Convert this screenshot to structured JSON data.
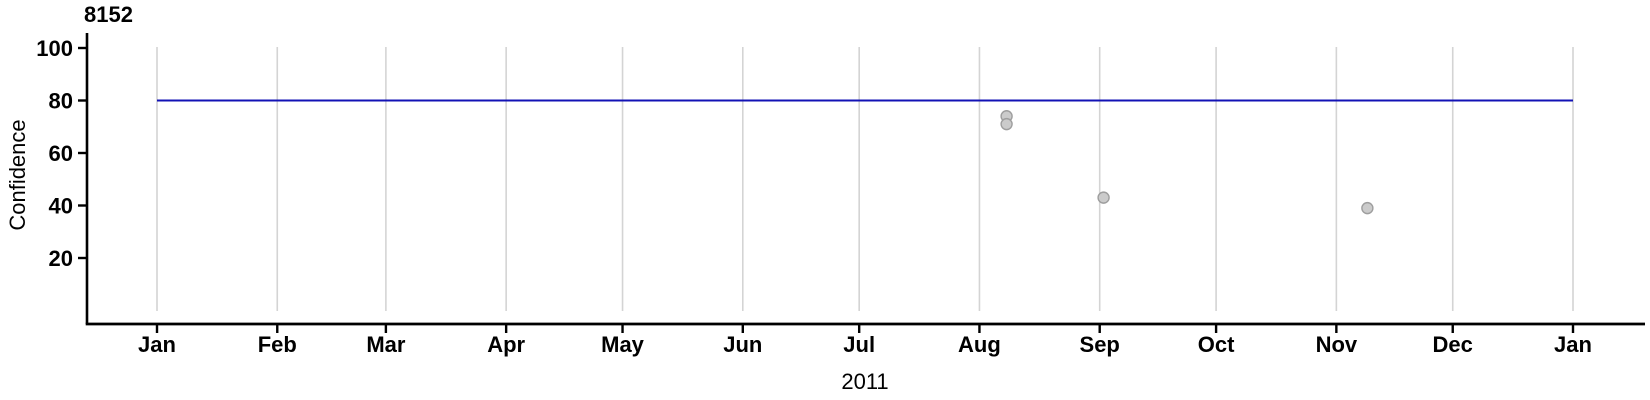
{
  "chart_data": {
    "type": "scatter",
    "title": "8152",
    "xlabel": "2011",
    "ylabel": "Confidence",
    "x_axis": {
      "tick_labels": [
        "Jan",
        "Feb",
        "Mar",
        "Apr",
        "May",
        "Jun",
        "Jul",
        "Aug",
        "Sep",
        "Oct",
        "Nov",
        "Dec",
        "Jan"
      ],
      "month_start_day": [
        0,
        31,
        59,
        90,
        120,
        151,
        181,
        212,
        243,
        273,
        304,
        334,
        365
      ],
      "range_days": [
        0,
        365
      ],
      "grid": true
    },
    "y_axis": {
      "ticks": [
        20,
        40,
        60,
        80,
        100
      ],
      "range": [
        0,
        105
      ],
      "grid": false
    },
    "reference_line": {
      "value": 80,
      "from_day": 0,
      "to_day": 365
    },
    "points": [
      {
        "day_of_year": 219,
        "value": 74
      },
      {
        "day_of_year": 219,
        "value": 71
      },
      {
        "day_of_year": 244,
        "value": 43
      },
      {
        "day_of_year": 312,
        "value": 39
      }
    ],
    "colors": {
      "reference_line": "#1212b5",
      "point_fill": "#cbcbcb",
      "point_stroke": "#9e9e9e",
      "gridline": "#d4d4d4",
      "axis": "#000000",
      "text": "#000000",
      "background": "#ffffff"
    }
  }
}
